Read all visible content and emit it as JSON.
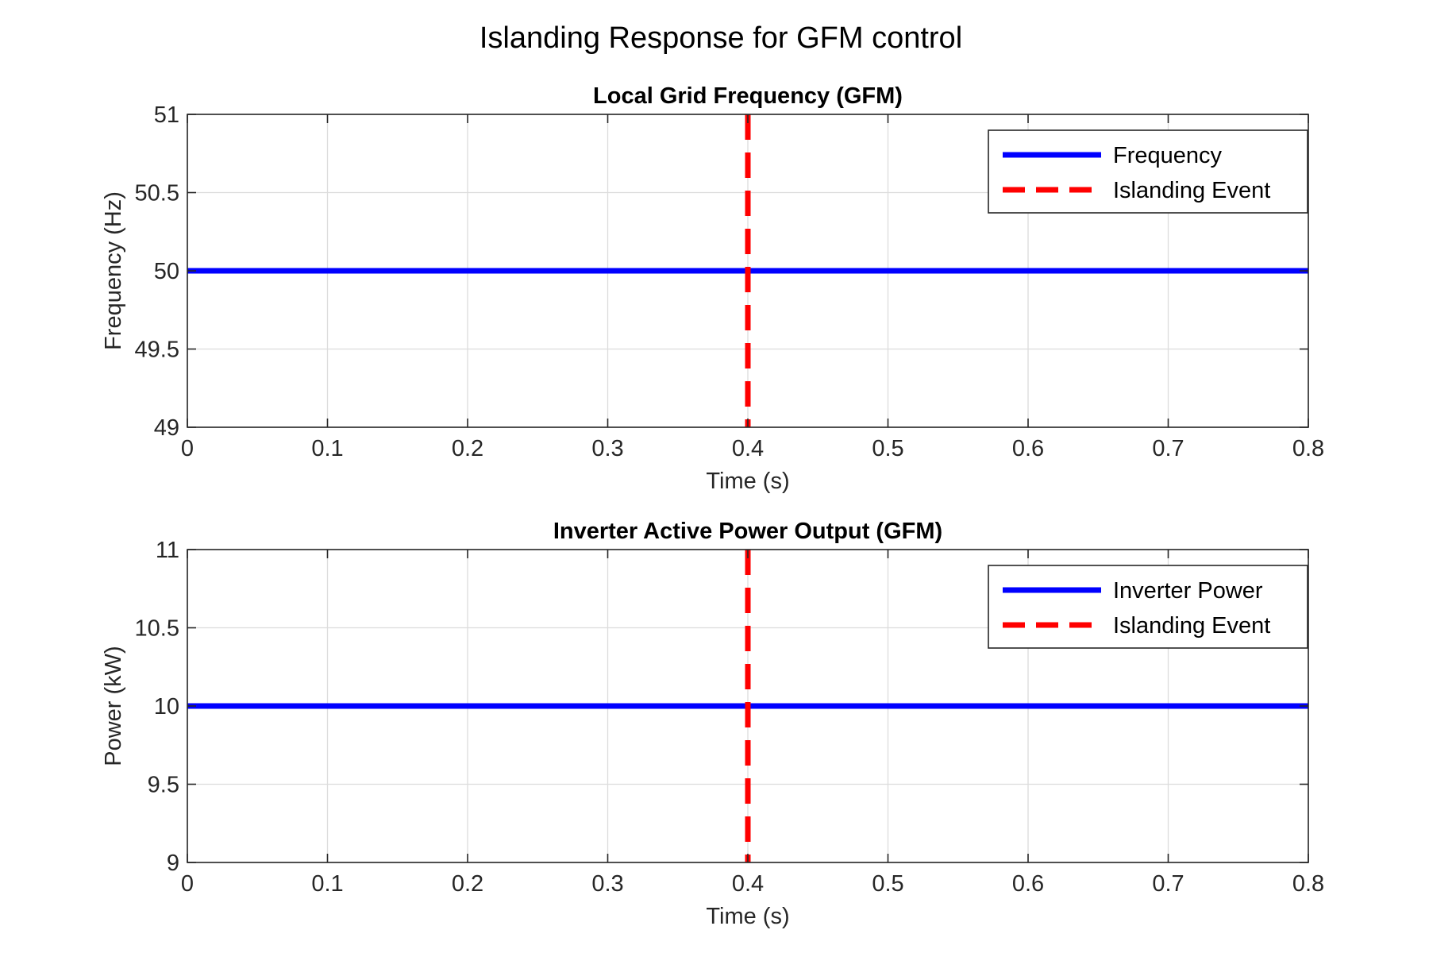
{
  "figure": {
    "title": "Islanding Response for GFM control"
  },
  "colors": {
    "series": "#0000ff",
    "event": "#ff0000",
    "grid": "#dcdcdc",
    "axis": "#262626"
  },
  "chart_data": [
    {
      "type": "line",
      "title": "Local Grid Frequency (GFM)",
      "xlabel": "Time (s)",
      "ylabel": "Frequency (Hz)",
      "xlim": [
        0,
        0.8
      ],
      "ylim": [
        49,
        51
      ],
      "x_ticks": [
        0,
        0.1,
        0.2,
        0.3,
        0.4,
        0.5,
        0.6,
        0.7,
        0.8
      ],
      "y_ticks": [
        49,
        49.5,
        50,
        50.5,
        51
      ],
      "x_tick_labels": [
        "0",
        "0.1",
        "0.2",
        "0.3",
        "0.4",
        "0.5",
        "0.6",
        "0.7",
        "0.8"
      ],
      "y_tick_labels": [
        "49",
        "49.5",
        "50",
        "50.5",
        "51"
      ],
      "grid": true,
      "legend_position": "top-right",
      "series": [
        {
          "name": "Frequency",
          "style": "solid",
          "x": [
            0,
            0.8
          ],
          "y": [
            50,
            50
          ]
        }
      ],
      "vlines": [
        {
          "name": "Islanding Event",
          "style": "dashed",
          "x": 0.4
        }
      ]
    },
    {
      "type": "line",
      "title": "Inverter Active Power Output (GFM)",
      "xlabel": "Time (s)",
      "ylabel": "Power (kW)",
      "xlim": [
        0,
        0.8
      ],
      "ylim": [
        9,
        11
      ],
      "x_ticks": [
        0,
        0.1,
        0.2,
        0.3,
        0.4,
        0.5,
        0.6,
        0.7,
        0.8
      ],
      "y_ticks": [
        9,
        9.5,
        10,
        10.5,
        11
      ],
      "x_tick_labels": [
        "0",
        "0.1",
        "0.2",
        "0.3",
        "0.4",
        "0.5",
        "0.6",
        "0.7",
        "0.8"
      ],
      "y_tick_labels": [
        "9",
        "9.5",
        "10",
        "10.5",
        "11"
      ],
      "grid": true,
      "legend_position": "top-right",
      "series": [
        {
          "name": "Inverter Power",
          "style": "solid",
          "x": [
            0,
            0.8
          ],
          "y": [
            10,
            10
          ]
        }
      ],
      "vlines": [
        {
          "name": "Islanding Event",
          "style": "dashed",
          "x": 0.4
        }
      ]
    }
  ]
}
